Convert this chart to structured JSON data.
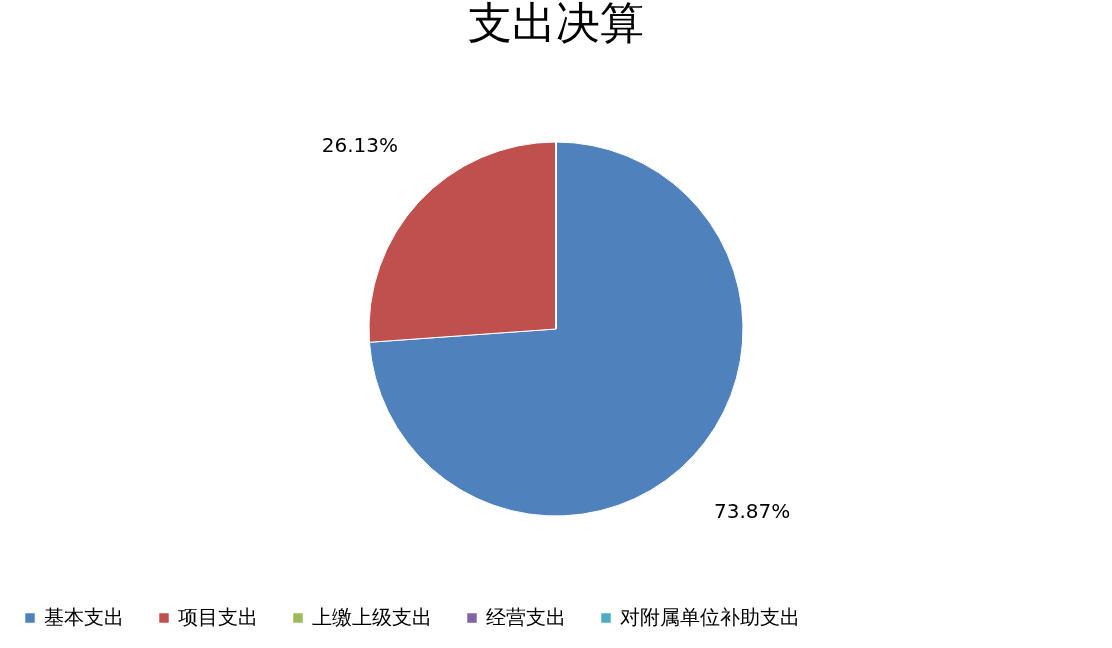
{
  "chart_data": {
    "type": "pie",
    "title": "支出决算",
    "categories": [
      "基本支出",
      "项目支出",
      "上缴上级支出",
      "经营支出",
      "对附属单位补助支出"
    ],
    "values": [
      73.87,
      26.13,
      0,
      0,
      0
    ],
    "colors": [
      "#4f81bd",
      "#c0504d",
      "#9bbb59",
      "#8064a2",
      "#4bacc6"
    ],
    "value_labels": [
      "73.87%",
      "26.13%",
      null,
      null,
      null
    ],
    "legend": "bottom"
  }
}
